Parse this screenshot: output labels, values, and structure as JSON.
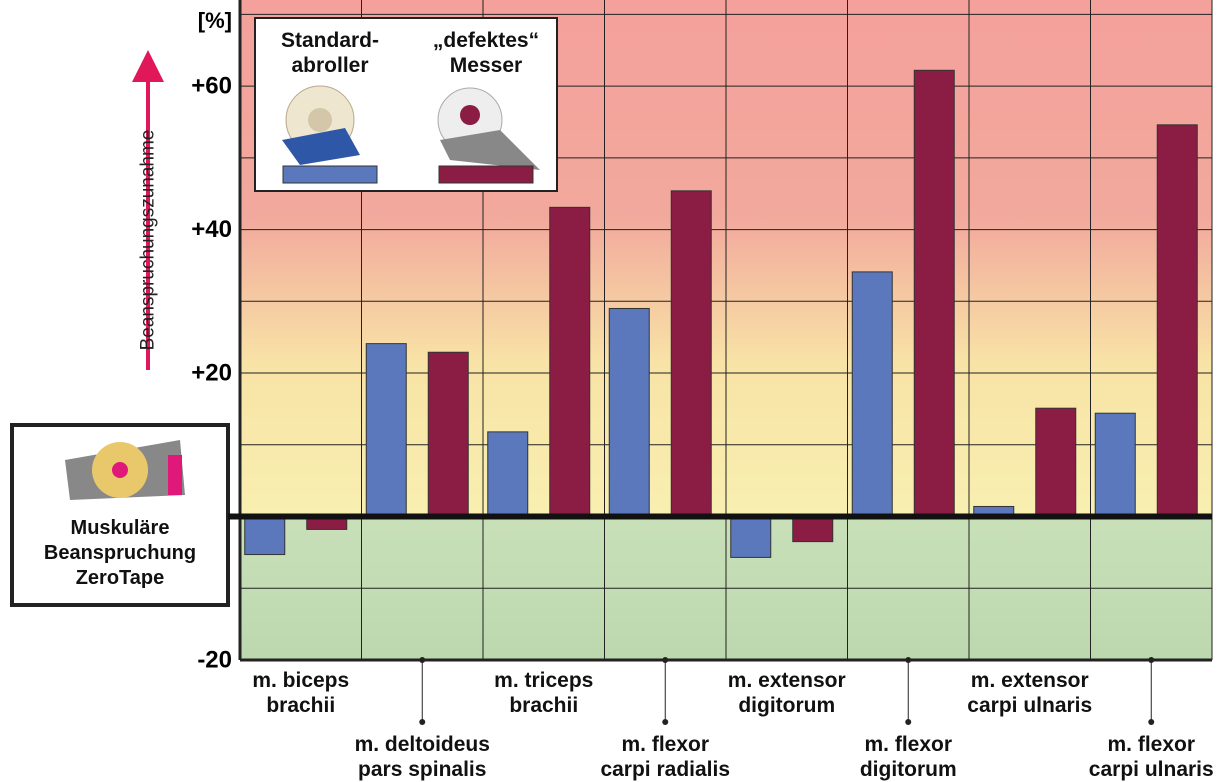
{
  "chart_data": {
    "type": "bar",
    "y_unit_label": "[%]",
    "y_axis_label": "Beanspruchungszunahme",
    "baseline_label": "Muskuläre\nBeanspruchung\nZeroTape",
    "categories": [
      "m. biceps\nbrachii",
      "m. deltoideus\npars spinalis",
      "m. triceps\nbrachii",
      "m. flexor\ncarpi radialis",
      "m. extensor\ndigitorum",
      "m. flexor\ndigitorum",
      "m. extensor\ncarpi ulnaris",
      "m. flexor\ncarpi ulnaris"
    ],
    "series": [
      {
        "name": "Standard-\nabroller",
        "color": "#5b78bd",
        "values": [
          -5.3,
          24.1,
          11.8,
          29.0,
          -5.7,
          34.1,
          1.4,
          14.4
        ]
      },
      {
        "name": "„defektes“\nMesser",
        "color": "#8b1d45",
        "values": [
          -1.8,
          22.9,
          43.1,
          45.4,
          -3.5,
          62.2,
          15.1,
          54.6
        ]
      }
    ],
    "ylim": [
      -20,
      72
    ],
    "yticks": [
      {
        "value": -20,
        "label": "-20"
      },
      {
        "value": 20,
        "label": "+20"
      },
      {
        "value": 40,
        "label": "+40"
      },
      {
        "value": 60,
        "label": "+60"
      }
    ],
    "gridlines": [
      -10,
      0,
      10,
      30,
      50,
      70
    ],
    "grid": true
  }
}
